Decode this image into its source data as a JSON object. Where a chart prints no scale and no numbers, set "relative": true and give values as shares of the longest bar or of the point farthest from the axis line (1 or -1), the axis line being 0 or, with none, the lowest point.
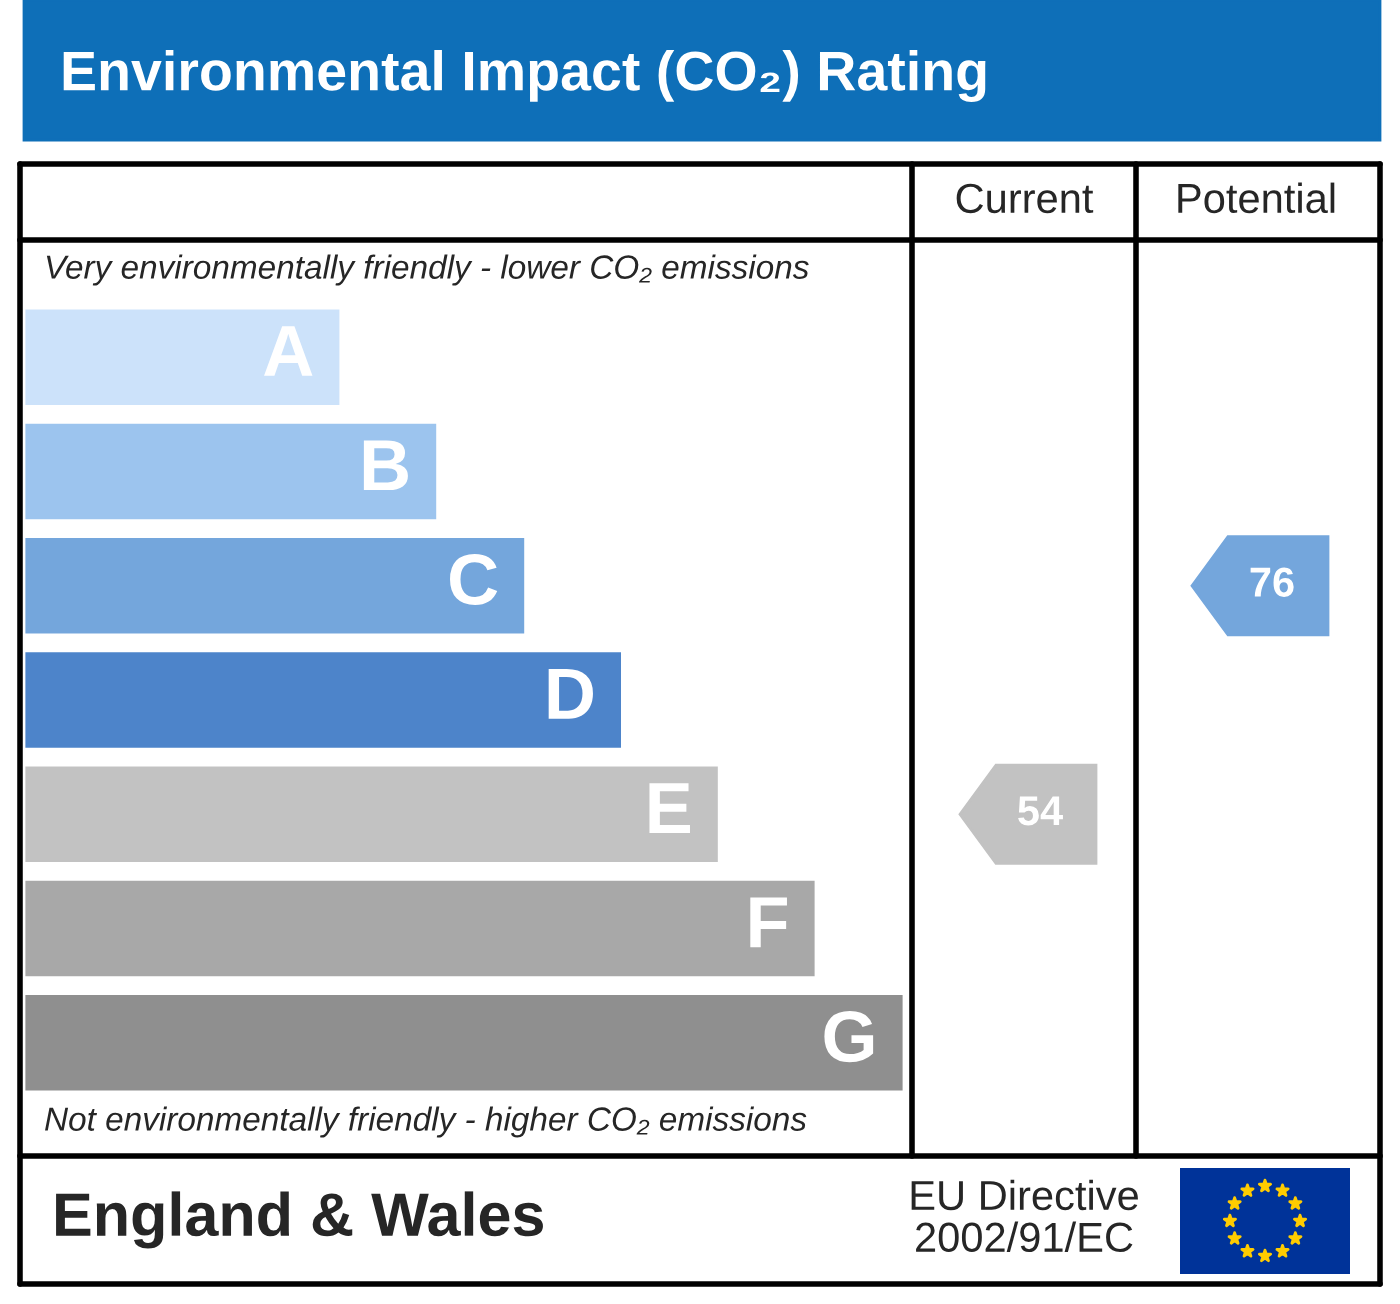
{
  "chart_data": {
    "type": "bar",
    "orientation": "horizontal",
    "relative": true,
    "title": "Environmental Impact (CO₂) Rating",
    "categories": [
      "A",
      "B",
      "C",
      "D",
      "E",
      "F",
      "G"
    ],
    "values": [
      0.36,
      0.47,
      0.57,
      0.68,
      0.79,
      0.9,
      1.0
    ],
    "colors": [
      "#cce2fa",
      "#9cc4ee",
      "#74a6dc",
      "#4d84ca",
      "#c2c2c2",
      "#a8a8a8",
      "#8f8f8f"
    ],
    "annotations": [
      "Current",
      "Potential",
      "Very environmentally friendly - lower CO₂ emissions",
      "Not environmentally friendly - higher CO₂ emissions",
      "England & Wales",
      "EU Directive\n2002/91/EC",
      "54",
      "76"
    ]
  }
}
